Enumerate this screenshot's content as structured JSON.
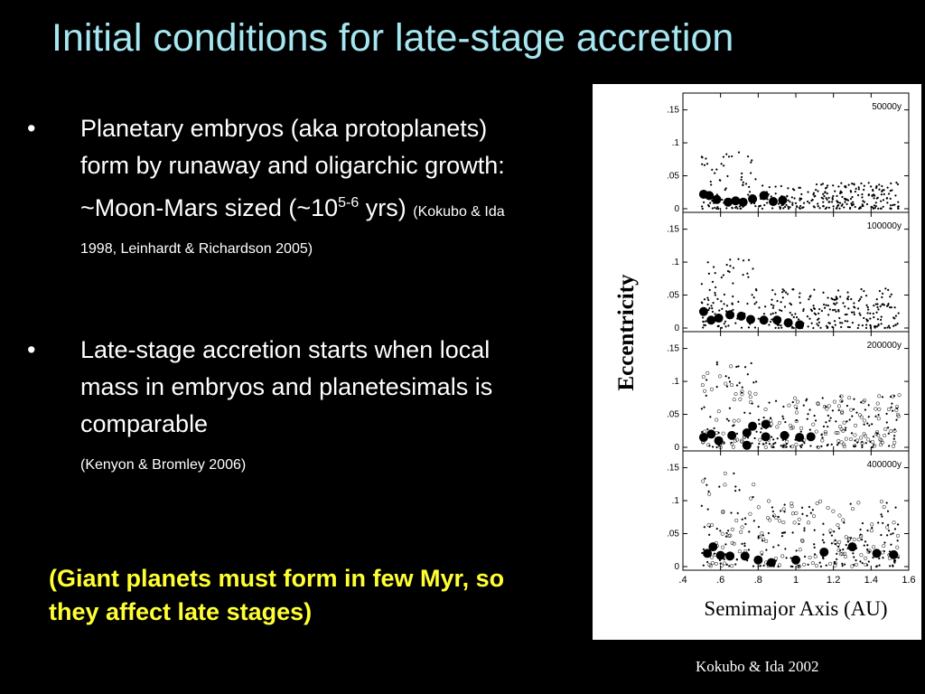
{
  "slide": {
    "title": "Initial conditions for late-stage accretion",
    "bullets": [
      {
        "marker": "•",
        "text_a": "Planetary embryos (aka protoplanets) form by runaway and oligarchic growth: ~Moon-Mars sized (~10",
        "sup": "5-6",
        "text_b": " yrs)",
        "cite": "(Kokubo & Ida 1998, Leinhardt & Richardson 2005)"
      },
      {
        "marker": "•",
        "text_a": "Late-stage accretion starts when local mass in embryos and planetesimals is comparable",
        "cite": "(Kenyon & Bromley 2006)"
      }
    ],
    "note": "(Giant planets must form in few Myr, so they affect late stages)",
    "credit": "Kokubo & Ida 2002"
  },
  "chart_data": {
    "type": "scatter",
    "xlabel": "Semimajor Axis (AU)",
    "ylabel": "Eccentricity",
    "xlim": [
      0.4,
      1.6
    ],
    "ylim": [
      0,
      0.17
    ],
    "xticks": [
      ".4",
      ".6",
      ".8",
      "1",
      "1.2",
      "1.4",
      "1.6"
    ],
    "yticks": [
      "0",
      ".05",
      ".1",
      ".15"
    ],
    "panels": [
      {
        "label": "50000y",
        "embryos": [
          {
            "x": 0.51,
            "e": 0.022
          },
          {
            "x": 0.54,
            "e": 0.02
          },
          {
            "x": 0.58,
            "e": 0.014
          },
          {
            "x": 0.64,
            "e": 0.01
          },
          {
            "x": 0.68,
            "e": 0.012
          },
          {
            "x": 0.72,
            "e": 0.01
          },
          {
            "x": 0.77,
            "e": 0.015
          },
          {
            "x": 0.83,
            "e": 0.02
          },
          {
            "x": 0.88,
            "e": 0.011
          },
          {
            "x": 0.93,
            "e": 0.013
          }
        ]
      },
      {
        "label": "100000y",
        "embryos": [
          {
            "x": 0.51,
            "e": 0.025
          },
          {
            "x": 0.55,
            "e": 0.012
          },
          {
            "x": 0.59,
            "e": 0.015
          },
          {
            "x": 0.65,
            "e": 0.02
          },
          {
            "x": 0.71,
            "e": 0.018
          },
          {
            "x": 0.76,
            "e": 0.013
          },
          {
            "x": 0.83,
            "e": 0.012
          },
          {
            "x": 0.9,
            "e": 0.012
          },
          {
            "x": 0.96,
            "e": 0.008
          },
          {
            "x": 1.02,
            "e": 0.005
          }
        ]
      },
      {
        "label": "200000y",
        "embryos": [
          {
            "x": 0.51,
            "e": 0.015
          },
          {
            "x": 0.55,
            "e": 0.02
          },
          {
            "x": 0.59,
            "e": 0.01
          },
          {
            "x": 0.66,
            "e": 0.018
          },
          {
            "x": 0.74,
            "e": 0.022
          },
          {
            "x": 0.74,
            "e": 0.003
          },
          {
            "x": 0.77,
            "e": 0.032
          },
          {
            "x": 0.84,
            "e": 0.035
          },
          {
            "x": 0.84,
            "e": 0.016
          },
          {
            "x": 0.94,
            "e": 0.018
          },
          {
            "x": 1.02,
            "e": 0.015
          },
          {
            "x": 1.08,
            "e": 0.016
          }
        ]
      },
      {
        "label": "400000y",
        "embryos": [
          {
            "x": 0.53,
            "e": 0.02
          },
          {
            "x": 0.56,
            "e": 0.03
          },
          {
            "x": 0.6,
            "e": 0.017
          },
          {
            "x": 0.65,
            "e": 0.016
          },
          {
            "x": 0.73,
            "e": 0.016
          },
          {
            "x": 0.8,
            "e": 0.01
          },
          {
            "x": 0.87,
            "e": 0.006
          },
          {
            "x": 1.0,
            "e": 0.01
          },
          {
            "x": 1.15,
            "e": 0.022
          },
          {
            "x": 1.3,
            "e": 0.03
          },
          {
            "x": 1.43,
            "e": 0.02
          },
          {
            "x": 1.52,
            "e": 0.018
          }
        ]
      }
    ],
    "planetesimal_count_per_panel": 320
  }
}
